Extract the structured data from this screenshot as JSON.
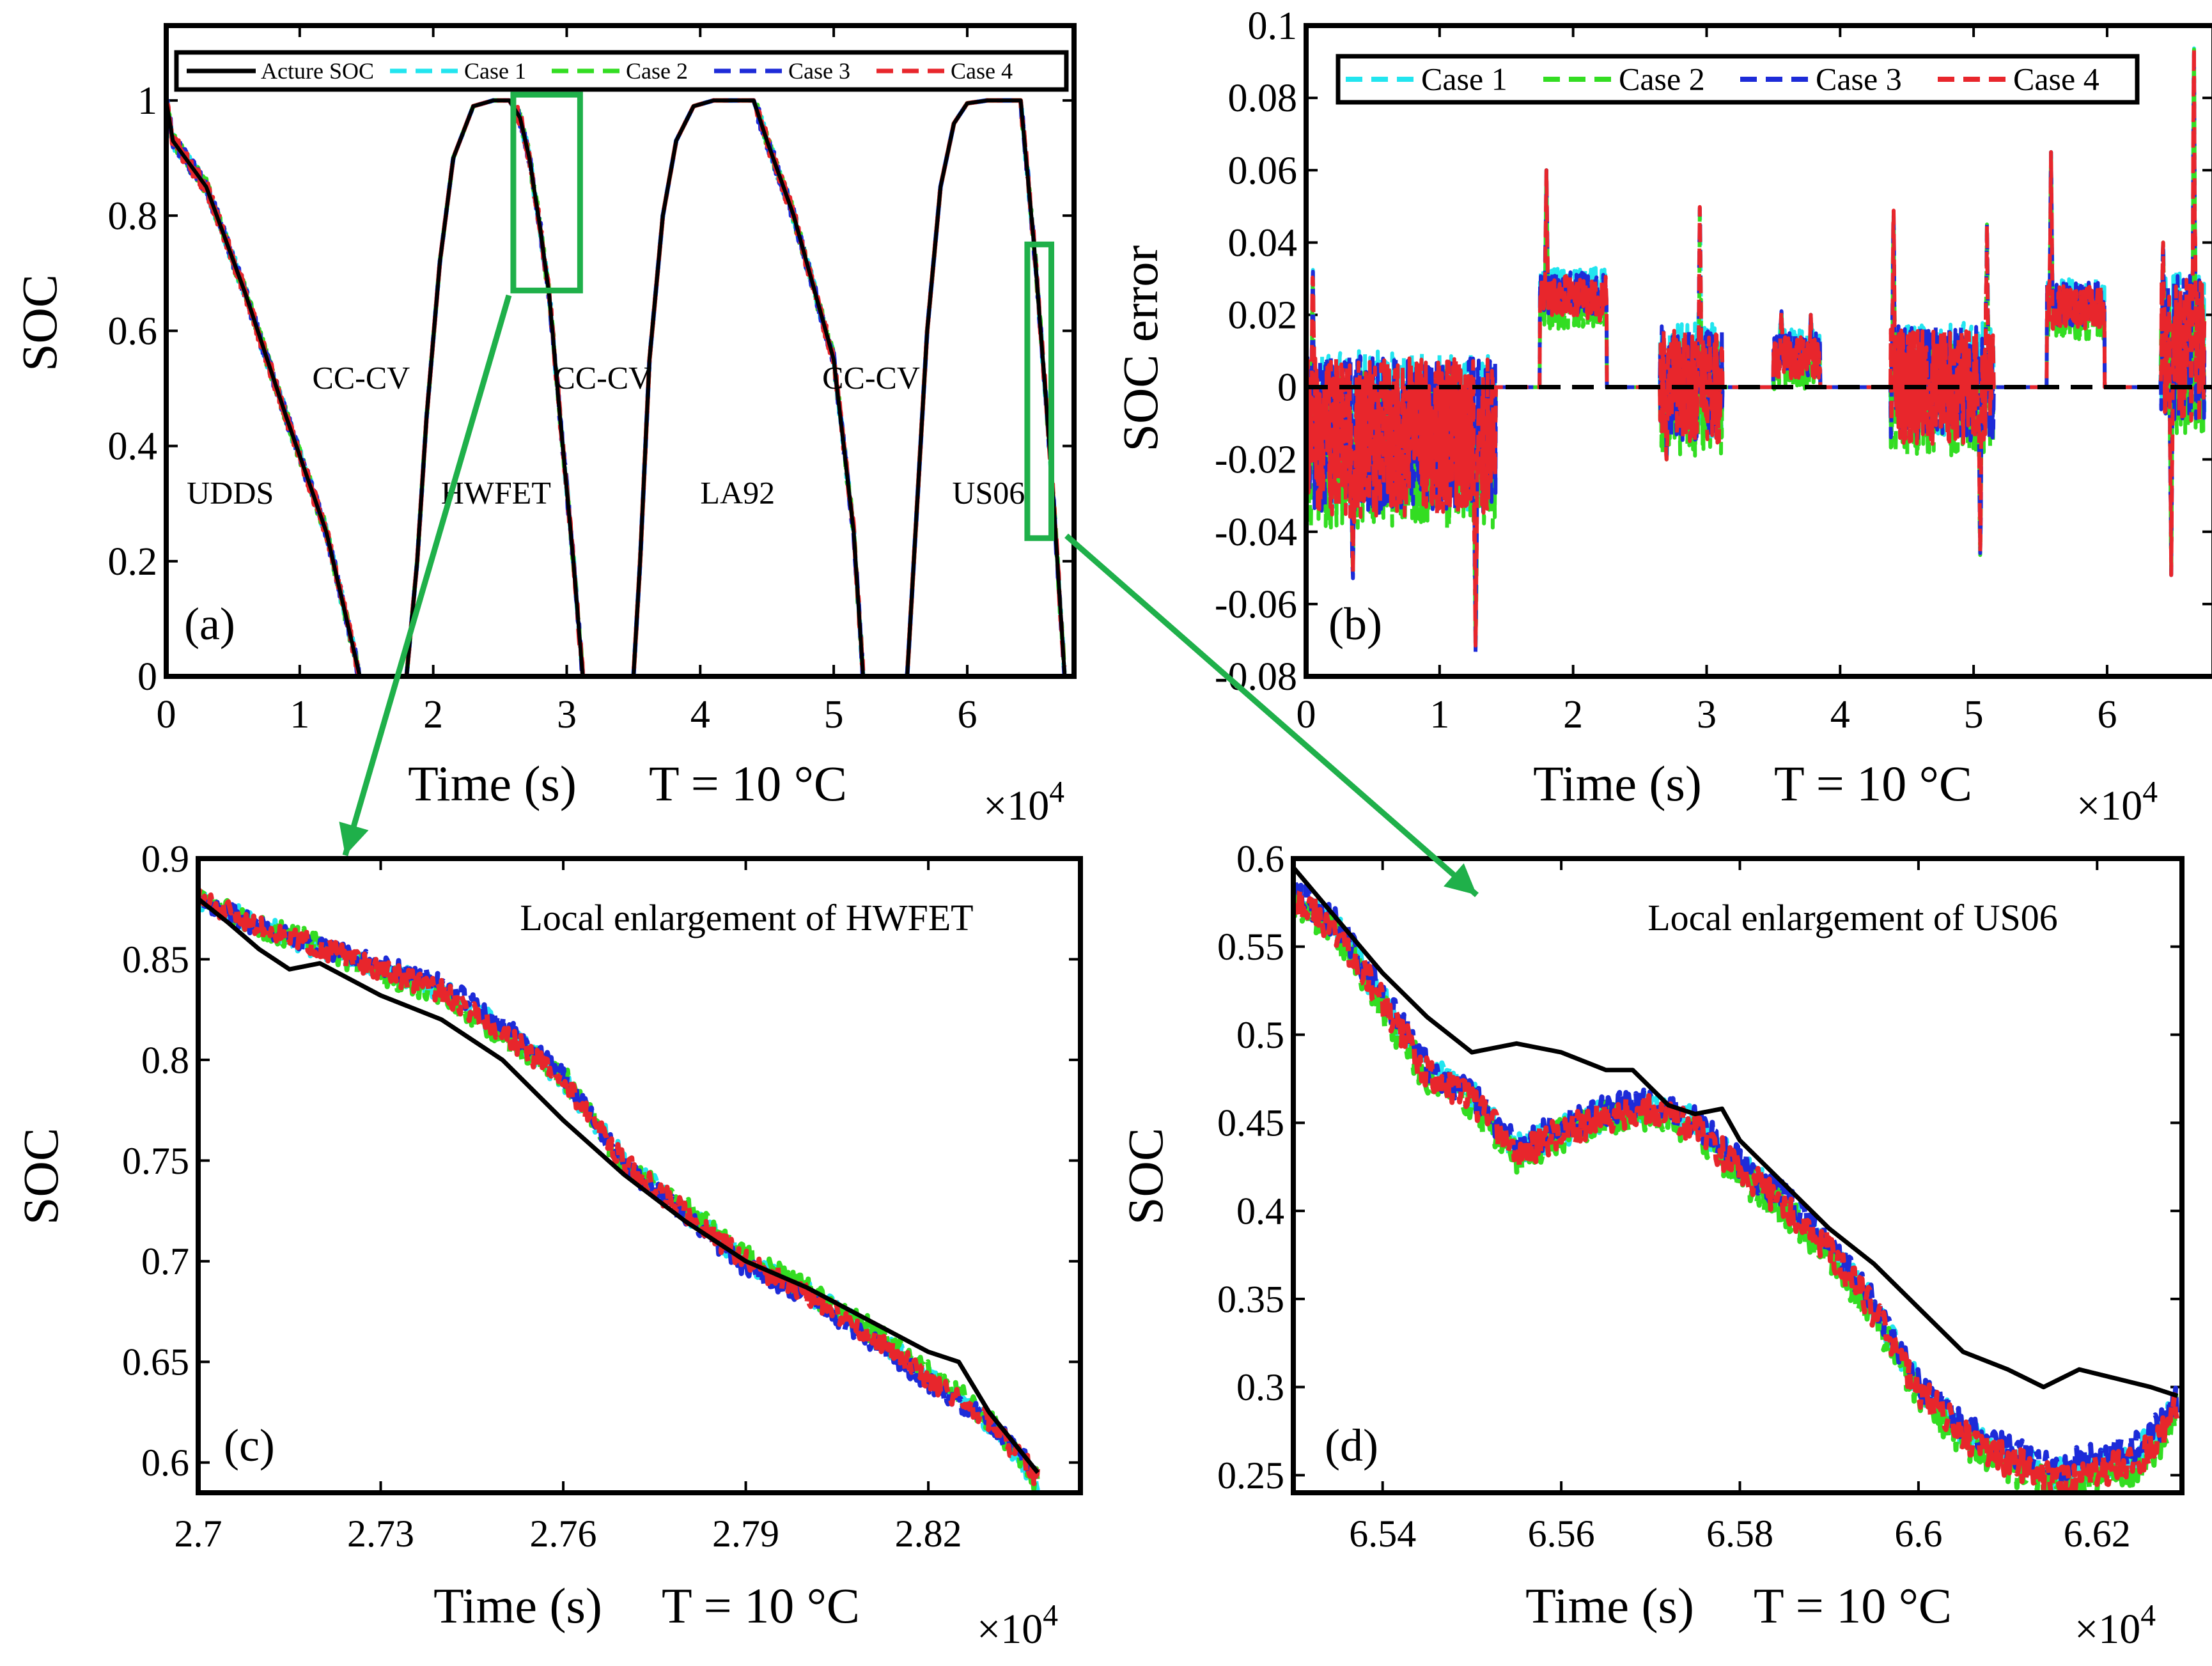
{
  "chart_data": [
    {
      "panel_label": "(a)",
      "type": "line",
      "xlabel": "Time (s)",
      "temperature_label": "T = 10 °C",
      "x_exponent_label": "×10^4",
      "ylabel": "SOC",
      "xlim": [
        0,
        6.8
      ],
      "ylim": [
        0,
        1.13
      ],
      "x_ticks": [
        0,
        1,
        2,
        3,
        4,
        5,
        6
      ],
      "x_tick_labels": [
        "0",
        "1",
        "2",
        "3",
        "4",
        "5",
        "6"
      ],
      "y_ticks": [
        0,
        0.2,
        0.4,
        0.6,
        0.8,
        1
      ],
      "y_tick_labels": [
        "0",
        "0.2",
        "0.4",
        "0.6",
        "0.8",
        "1"
      ],
      "legend": [
        "Acture SOC",
        "Case 1",
        "Case 2",
        "Case 3",
        "Case 4"
      ],
      "legend_placement": "top",
      "annotations": [
        {
          "text": "UDDS",
          "x": 0.48,
          "y": 0.3
        },
        {
          "text": "CC-CV",
          "x": 1.46,
          "y": 0.5
        },
        {
          "text": "HWFET",
          "x": 2.47,
          "y": 0.3
        },
        {
          "text": "CC-CV",
          "x": 3.27,
          "y": 0.5
        },
        {
          "text": "LA92",
          "x": 4.28,
          "y": 0.3
        },
        {
          "text": "CC-CV",
          "x": 5.28,
          "y": 0.5
        },
        {
          "text": "US06",
          "x": 6.16,
          "y": 0.3
        }
      ],
      "zoom_boxes": [
        {
          "x": [
            2.6,
            3.1
          ],
          "y": [
            0.67,
            1.01
          ]
        },
        {
          "x": [
            6.45,
            6.63
          ],
          "y": [
            0.24,
            0.75
          ]
        }
      ],
      "series": [
        {
          "name": "Acture SOC",
          "color": "#000000",
          "x": [
            0,
            0.05,
            0.3,
            0.6,
            0.9,
            1.2,
            1.38,
            1.45,
            1.8,
            1.88,
            1.95,
            2.05,
            2.15,
            2.3,
            2.45,
            2.57,
            2.65,
            2.72,
            2.8,
            2.87,
            2.95,
            3.05,
            3.12,
            3.5,
            3.55,
            3.62,
            3.72,
            3.82,
            3.95,
            4.1,
            4.4,
            4.5,
            4.7,
            5.0,
            5.15,
            5.22,
            5.55,
            5.6,
            5.7,
            5.8,
            5.9,
            6.0,
            6.15,
            6.4,
            6.5,
            6.55,
            6.6,
            6.65,
            6.73
          ],
          "y": [
            1,
            0.93,
            0.85,
            0.66,
            0.45,
            0.25,
            0.07,
            0,
            0,
            0.2,
            0.45,
            0.72,
            0.9,
            0.99,
            1,
            1,
            0.97,
            0.9,
            0.78,
            0.66,
            0.45,
            0.2,
            0,
            0,
            0.2,
            0.55,
            0.8,
            0.93,
            0.99,
            1,
            1,
            0.93,
            0.8,
            0.55,
            0.25,
            0,
            0,
            0.2,
            0.6,
            0.85,
            0.96,
            0.995,
            1,
            1,
            0.75,
            0.6,
            0.45,
            0.29,
            0
          ]
        },
        {
          "name": "Case 1",
          "color": "#22e5ef",
          "from": "Acture SOC"
        },
        {
          "name": "Case 2",
          "color": "#33dd22",
          "from": "Acture SOC"
        },
        {
          "name": "Case 3",
          "color": "#1d2bd8",
          "from": "Acture SOC"
        },
        {
          "name": "Case 4",
          "color": "#e8262c",
          "from": "Acture SOC"
        }
      ]
    },
    {
      "panel_label": "(b)",
      "type": "line",
      "xlabel": "Time (s)",
      "temperature_label": "T = 10 °C",
      "x_exponent_label": "×10^4",
      "ylabel": "SOC error",
      "xlim": [
        0,
        6.8
      ],
      "ylim": [
        -0.08,
        0.1
      ],
      "x_ticks": [
        0,
        1,
        2,
        3,
        4,
        5,
        6
      ],
      "x_tick_labels": [
        "0",
        "1",
        "2",
        "3",
        "4",
        "5",
        "6"
      ],
      "y_ticks": [
        -0.08,
        -0.06,
        -0.04,
        -0.02,
        0,
        0.02,
        0.04,
        0.06,
        0.08,
        0.1
      ],
      "y_tick_labels": [
        "-0.08",
        "-0.06",
        "-0.04",
        "-0.02",
        "0",
        "0.02",
        "0.04",
        "0.06",
        "0.08",
        "0.1"
      ],
      "legend": [
        "Case 1",
        "Case 2",
        "Case 3",
        "Case 4"
      ],
      "legend_placement": "top",
      "reference_line": {
        "y": 0,
        "style": "dashed",
        "color": "#000000"
      },
      "active_segments": [
        {
          "x": [
            0,
            1.42
          ],
          "amp": 0.022,
          "bias": -0.014,
          "peaks": [
            {
              "x": 0.35,
              "y": -0.055
            },
            {
              "x": 1.27,
              "y": -0.078
            },
            {
              "x": 0.05,
              "y": 0.035
            }
          ]
        },
        {
          "x": [
            1.75,
            2.25
          ],
          "amp": 0.006,
          "bias": 0.025,
          "peaks": [
            {
              "x": 1.8,
              "y": 0.06
            },
            {
              "x": 2.2,
              "y": 0.018
            }
          ]
        },
        {
          "x": [
            2.65,
            3.12
          ],
          "amp": 0.016,
          "bias": 0.0,
          "peaks": [
            {
              "x": 2.95,
              "y": 0.053
            },
            {
              "x": 2.7,
              "y": -0.02
            }
          ]
        },
        {
          "x": [
            3.5,
            3.85
          ],
          "amp": 0.006,
          "bias": 0.008,
          "peaks": [
            {
              "x": 3.78,
              "y": 0.02
            },
            {
              "x": 3.56,
              "y": 0.022
            }
          ]
        },
        {
          "x": [
            4.38,
            5.15
          ],
          "amp": 0.016,
          "bias": 0.0,
          "peaks": [
            {
              "x": 4.4,
              "y": 0.052
            },
            {
              "x": 5.05,
              "y": -0.05
            },
            {
              "x": 5.1,
              "y": 0.045
            }
          ]
        },
        {
          "x": [
            5.55,
            5.98
          ],
          "amp": 0.006,
          "bias": 0.022,
          "peaks": [
            {
              "x": 5.58,
              "y": 0.065
            },
            {
              "x": 5.9,
              "y": 0.018
            }
          ]
        },
        {
          "x": [
            6.4,
            6.73
          ],
          "amp": 0.02,
          "bias": 0.01,
          "peaks": [
            {
              "x": 6.65,
              "y": 0.1
            },
            {
              "x": 6.48,
              "y": -0.052
            },
            {
              "x": 6.42,
              "y": 0.04
            }
          ]
        }
      ],
      "series": [
        {
          "name": "Case 1",
          "color": "#22e5ef",
          "offset": 0.002
        },
        {
          "name": "Case 2",
          "color": "#33dd22",
          "offset": -0.003
        },
        {
          "name": "Case 3",
          "color": "#1d2bd8",
          "offset": 0.001
        },
        {
          "name": "Case 4",
          "color": "#e8262c",
          "offset": 0
        }
      ]
    },
    {
      "panel_label": "(c)",
      "type": "line",
      "title_annotation": "Local enlargement of HWFET",
      "xlabel": "Time (s)",
      "temperature_label": "T = 10 °C",
      "x_exponent_label": "×10^4",
      "ylabel": "SOC",
      "xlim": [
        2.7,
        2.845
      ],
      "ylim": [
        0.585,
        0.9
      ],
      "x_ticks": [
        2.7,
        2.73,
        2.76,
        2.79,
        2.82
      ],
      "x_tick_labels": [
        "2.7",
        "2.73",
        "2.76",
        "2.79",
        "2.82"
      ],
      "y_ticks": [
        0.6,
        0.65,
        0.7,
        0.75,
        0.8,
        0.85,
        0.9
      ],
      "y_tick_labels": [
        "0.6",
        "0.65",
        "0.7",
        "0.75",
        "0.8",
        "0.85",
        "0.9"
      ],
      "series": [
        {
          "name": "Acture SOC",
          "color": "#000000",
          "x": [
            2.7,
            2.705,
            2.71,
            2.715,
            2.72,
            2.73,
            2.74,
            2.75,
            2.76,
            2.77,
            2.78,
            2.79,
            2.8,
            2.81,
            2.82,
            2.825,
            2.83,
            2.838
          ],
          "y": [
            0.88,
            0.868,
            0.855,
            0.845,
            0.848,
            0.832,
            0.82,
            0.8,
            0.77,
            0.743,
            0.72,
            0.7,
            0.687,
            0.671,
            0.655,
            0.65,
            0.625,
            0.595
          ]
        },
        {
          "name": "Case 1",
          "color": "#22e5ef",
          "noise": 0.0055,
          "seed": 11,
          "x": [
            2.7,
            2.71,
            2.72,
            2.73,
            2.74,
            2.75,
            2.76,
            2.77,
            2.78,
            2.79,
            2.8,
            2.81,
            2.82,
            2.83,
            2.838
          ],
          "y": [
            0.88,
            0.867,
            0.855,
            0.845,
            0.835,
            0.815,
            0.79,
            0.75,
            0.725,
            0.7,
            0.685,
            0.665,
            0.643,
            0.62,
            0.59
          ]
        },
        {
          "name": "Case 2",
          "color": "#33dd22",
          "noise": 0.006,
          "seed": 23,
          "x": [
            2.7,
            2.71,
            2.72,
            2.73,
            2.74,
            2.75,
            2.76,
            2.77,
            2.78,
            2.79,
            2.8,
            2.81,
            2.82,
            2.83,
            2.838
          ],
          "y": [
            0.882,
            0.866,
            0.857,
            0.843,
            0.833,
            0.812,
            0.792,
            0.748,
            0.727,
            0.703,
            0.686,
            0.667,
            0.645,
            0.622,
            0.59
          ]
        },
        {
          "name": "Case 3",
          "color": "#1d2bd8",
          "noise": 0.005,
          "seed": 37,
          "x": [
            2.7,
            2.71,
            2.72,
            2.73,
            2.74,
            2.75,
            2.76,
            2.77,
            2.78,
            2.79,
            2.8,
            2.81,
            2.82,
            2.83,
            2.838
          ],
          "y": [
            0.88,
            0.866,
            0.856,
            0.847,
            0.838,
            0.818,
            0.792,
            0.748,
            0.722,
            0.697,
            0.683,
            0.662,
            0.64,
            0.62,
            0.595
          ]
        },
        {
          "name": "Case 4",
          "color": "#e8262c",
          "noise": 0.0055,
          "seed": 51,
          "x": [
            2.7,
            2.71,
            2.72,
            2.73,
            2.74,
            2.75,
            2.76,
            2.77,
            2.78,
            2.79,
            2.8,
            2.81,
            2.82,
            2.83,
            2.838
          ],
          "y": [
            0.88,
            0.866,
            0.856,
            0.845,
            0.834,
            0.814,
            0.79,
            0.749,
            0.724,
            0.7,
            0.684,
            0.664,
            0.642,
            0.621,
            0.592
          ]
        }
      ]
    },
    {
      "panel_label": "(d)",
      "type": "line",
      "title_annotation": "Local enlargement of US06",
      "xlabel": "Time (s)",
      "temperature_label": "T = 10 °C",
      "x_exponent_label": "×10^4",
      "ylabel": "SOC",
      "xlim": [
        6.53,
        6.6295
      ],
      "ylim": [
        0.24,
        0.6
      ],
      "x_ticks": [
        6.54,
        6.56,
        6.58,
        6.6,
        6.62
      ],
      "x_tick_labels": [
        "6.54",
        "6.56",
        "6.58",
        "6.6",
        "6.62"
      ],
      "y_ticks": [
        0.25,
        0.3,
        0.35,
        0.4,
        0.45,
        0.5,
        0.55,
        0.6
      ],
      "y_tick_labels": [
        "0.25",
        "0.3",
        "0.35",
        "0.4",
        "0.45",
        "0.5",
        "0.55",
        "0.6"
      ],
      "series": [
        {
          "name": "Acture SOC",
          "color": "#000000",
          "x": [
            6.53,
            6.535,
            6.54,
            6.545,
            6.55,
            6.555,
            6.56,
            6.565,
            6.568,
            6.572,
            6.575,
            6.578,
            6.58,
            6.585,
            6.59,
            6.595,
            6.6,
            6.605,
            6.61,
            6.614,
            6.618,
            6.622,
            6.626,
            6.629
          ],
          "y": [
            0.595,
            0.565,
            0.535,
            0.51,
            0.49,
            0.495,
            0.49,
            0.48,
            0.48,
            0.46,
            0.455,
            0.458,
            0.44,
            0.415,
            0.39,
            0.37,
            0.345,
            0.32,
            0.31,
            0.3,
            0.31,
            0.305,
            0.3,
            0.295
          ]
        },
        {
          "name": "Case 1",
          "color": "#22e5ef",
          "noise": 0.009,
          "seed": 7,
          "x": [
            6.53,
            6.535,
            6.54,
            6.545,
            6.55,
            6.555,
            6.56,
            6.565,
            6.57,
            6.575,
            6.58,
            6.585,
            6.59,
            6.595,
            6.6,
            6.605,
            6.61,
            6.615,
            6.62,
            6.624,
            6.627,
            6.629
          ],
          "y": [
            0.58,
            0.56,
            0.52,
            0.48,
            0.465,
            0.435,
            0.445,
            0.455,
            0.46,
            0.45,
            0.425,
            0.405,
            0.38,
            0.345,
            0.3,
            0.275,
            0.262,
            0.25,
            0.255,
            0.26,
            0.275,
            0.29
          ]
        },
        {
          "name": "Case 2",
          "color": "#33dd22",
          "noise": 0.01,
          "seed": 19,
          "x": [
            6.53,
            6.535,
            6.54,
            6.545,
            6.55,
            6.555,
            6.56,
            6.565,
            6.57,
            6.575,
            6.58,
            6.585,
            6.59,
            6.595,
            6.6,
            6.605,
            6.61,
            6.615,
            6.62,
            6.624,
            6.627,
            6.629
          ],
          "y": [
            0.578,
            0.556,
            0.515,
            0.475,
            0.462,
            0.43,
            0.443,
            0.452,
            0.456,
            0.446,
            0.42,
            0.4,
            0.376,
            0.34,
            0.296,
            0.27,
            0.255,
            0.245,
            0.248,
            0.252,
            0.268,
            0.288
          ]
        },
        {
          "name": "Case 3",
          "color": "#1d2bd8",
          "noise": 0.009,
          "seed": 29,
          "x": [
            6.53,
            6.535,
            6.54,
            6.545,
            6.55,
            6.555,
            6.56,
            6.565,
            6.57,
            6.575,
            6.58,
            6.585,
            6.59,
            6.595,
            6.6,
            6.605,
            6.61,
            6.615,
            6.62,
            6.624,
            6.627,
            6.629
          ],
          "y": [
            0.582,
            0.562,
            0.522,
            0.482,
            0.466,
            0.437,
            0.447,
            0.457,
            0.462,
            0.452,
            0.427,
            0.407,
            0.382,
            0.347,
            0.302,
            0.278,
            0.265,
            0.255,
            0.26,
            0.265,
            0.278,
            0.292
          ]
        },
        {
          "name": "Case 4",
          "color": "#e8262c",
          "noise": 0.0095,
          "seed": 43,
          "x": [
            6.53,
            6.535,
            6.54,
            6.545,
            6.55,
            6.555,
            6.56,
            6.565,
            6.57,
            6.575,
            6.58,
            6.585,
            6.59,
            6.595,
            6.6,
            6.605,
            6.61,
            6.615,
            6.62,
            6.624,
            6.627,
            6.629
          ],
          "y": [
            0.579,
            0.558,
            0.518,
            0.478,
            0.464,
            0.432,
            0.444,
            0.454,
            0.458,
            0.448,
            0.423,
            0.403,
            0.378,
            0.343,
            0.298,
            0.273,
            0.258,
            0.248,
            0.252,
            0.256,
            0.27,
            0.29
          ]
        }
      ]
    }
  ],
  "colors": {
    "acture": "#000000",
    "case1": "#22e5ef",
    "case2": "#33dd22",
    "case3": "#1d2bd8",
    "case4": "#e8262c",
    "connector": "#1fb04a"
  }
}
